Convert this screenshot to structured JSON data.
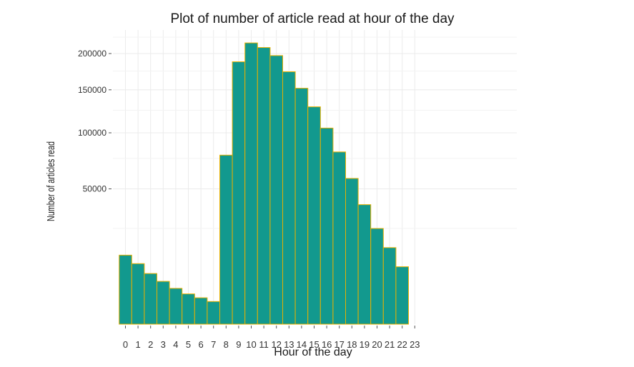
{
  "chart_data": {
    "type": "bar",
    "title": "Plot of number of article read at hour of the day",
    "xlabel": "Hour of the day",
    "ylabel": "Number of articles read",
    "x_ticks": [
      "0",
      "1",
      "2",
      "3",
      "4",
      "5",
      "6",
      "7",
      "8",
      "9",
      "10",
      "11",
      "12",
      "13",
      "14",
      "15",
      "16",
      "17",
      "18",
      "19",
      "20",
      "21",
      "22",
      "23"
    ],
    "y_ticks": [
      50000,
      100000,
      150000,
      200000
    ],
    "y_tick_labels": [
      "50000",
      "100000",
      "150000",
      "200000"
    ],
    "y_scale": "sqrt",
    "ylim": [
      0,
      240000
    ],
    "grid": true,
    "bars": [
      {
        "hour": 0,
        "value": 13000
      },
      {
        "hour": 1,
        "value": 10000
      },
      {
        "hour": 2,
        "value": 7000
      },
      {
        "hour": 3,
        "value": 5000
      },
      {
        "hour": 4,
        "value": 3500
      },
      {
        "hour": 5,
        "value": 2500
      },
      {
        "hour": 6,
        "value": 1900
      },
      {
        "hour": 7,
        "value": 1400
      },
      {
        "hour": 8,
        "value": 78000
      },
      {
        "hour": 9,
        "value": 188000
      },
      {
        "hour": 10,
        "value": 216000
      },
      {
        "hour": 11,
        "value": 209000
      },
      {
        "hour": 12,
        "value": 197000
      },
      {
        "hour": 13,
        "value": 174000
      },
      {
        "hour": 14,
        "value": 152000
      },
      {
        "hour": 15,
        "value": 129000
      },
      {
        "hour": 16,
        "value": 105000
      },
      {
        "hour": 17,
        "value": 81000
      },
      {
        "hour": 18,
        "value": 58000
      },
      {
        "hour": 19,
        "value": 39000
      },
      {
        "hour": 20,
        "value": 25000
      },
      {
        "hour": 21,
        "value": 16000
      },
      {
        "hour": 22,
        "value": 9000
      }
    ],
    "colors": {
      "bar_fill": "#12998E",
      "bar_stroke": "#E6B000",
      "grid": "#EBEBEB",
      "text": "#1a1a1a",
      "axis_text": "#333333"
    }
  }
}
